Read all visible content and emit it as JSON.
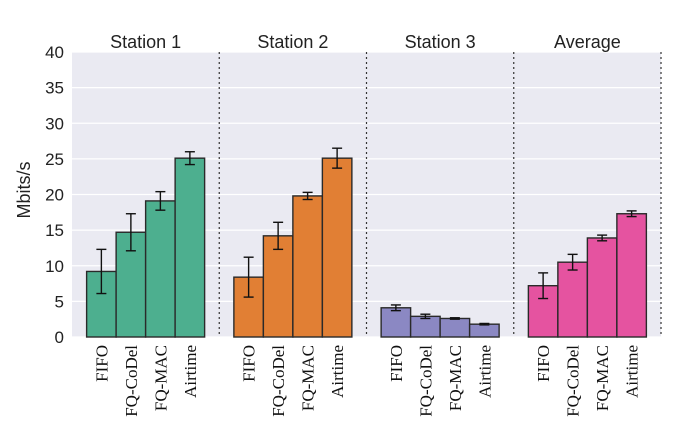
{
  "chart_data": {
    "type": "bar",
    "ylabel": "Mbits/s",
    "ylim": [
      0,
      40
    ],
    "yticks": [
      0,
      5,
      10,
      15,
      20,
      25,
      30,
      35,
      40
    ],
    "grid": true,
    "legend": "none",
    "categories": [
      "FIFO",
      "FQ-CoDel",
      "FQ-MAC",
      "Airtime"
    ],
    "groups": [
      {
        "title": "Station 1",
        "color": "#4daf8f",
        "values": [
          9.2,
          14.7,
          19.1,
          25.1
        ],
        "errors": [
          3.1,
          2.6,
          1.3,
          0.9
        ]
      },
      {
        "title": "Station 2",
        "color": "#e17f34",
        "values": [
          8.4,
          14.2,
          19.8,
          25.1
        ],
        "errors": [
          2.8,
          1.9,
          0.5,
          1.4
        ]
      },
      {
        "title": "Station 3",
        "color": "#8b88c3",
        "values": [
          4.1,
          2.9,
          2.6,
          1.8
        ],
        "errors": [
          0.4,
          0.3,
          0.1,
          0.1
        ]
      },
      {
        "title": "Average",
        "color": "#e553a0",
        "values": [
          7.2,
          10.5,
          13.9,
          17.3
        ],
        "errors": [
          1.8,
          1.1,
          0.4,
          0.4
        ]
      }
    ]
  }
}
